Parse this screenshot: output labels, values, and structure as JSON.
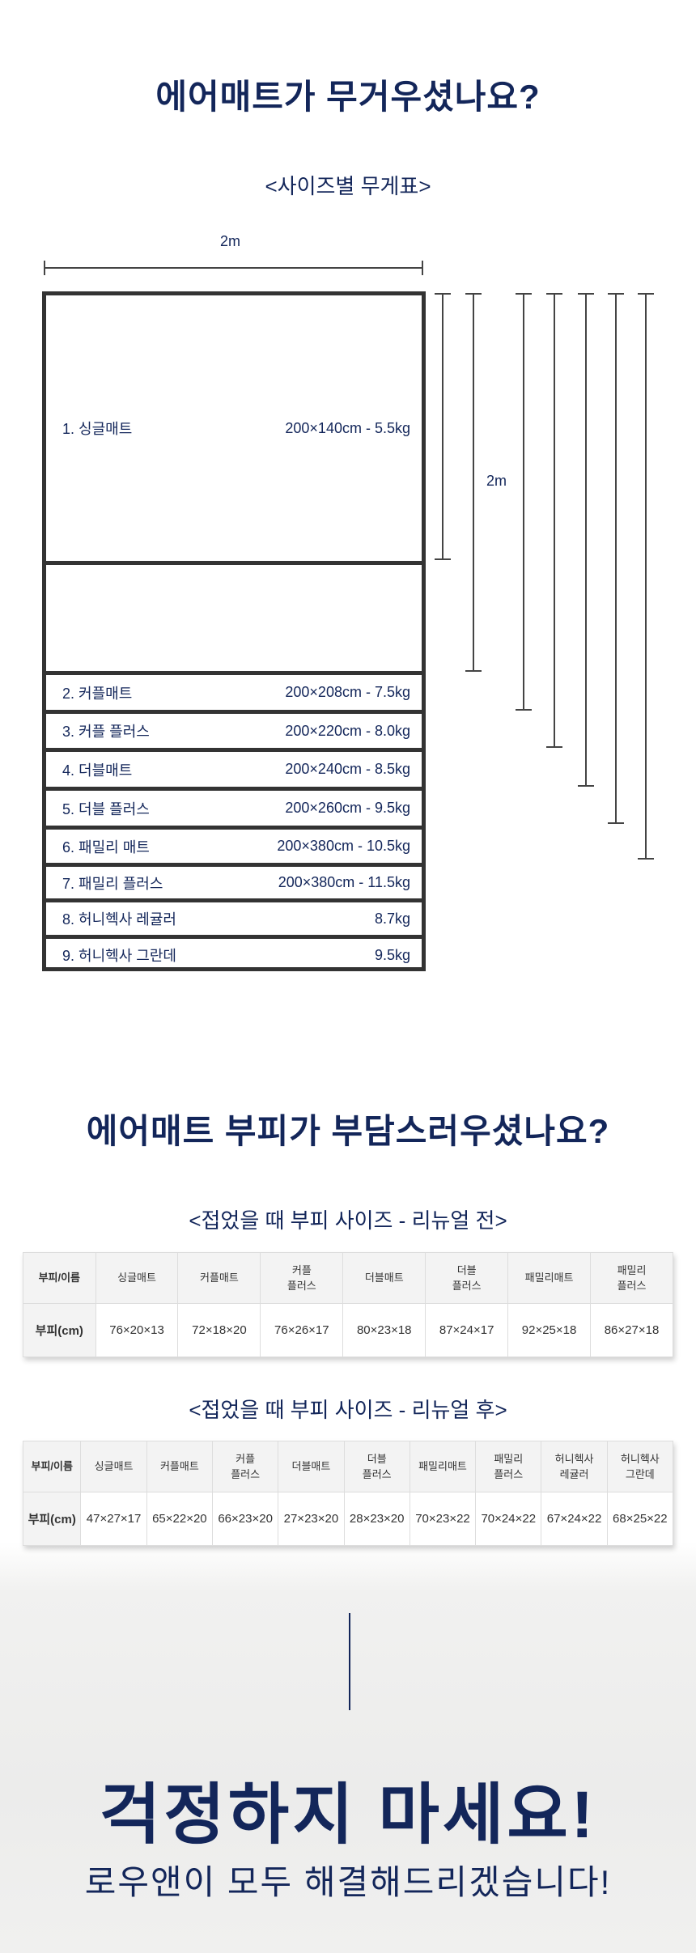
{
  "section1": {
    "title": "에어매트가 무거우셨나요?",
    "subtitle": "<사이즈별 무게표>",
    "width_label": "2m",
    "height_label": "2m",
    "mats": [
      {
        "name": "1. 싱글매트",
        "spec": "200×140cm - 5.5kg"
      },
      {
        "name": "2. 커플매트",
        "spec": "200×208cm - 7.5kg"
      },
      {
        "name": "3. 커플 플러스",
        "spec": "200×220cm - 8.0kg"
      },
      {
        "name": "4. 더블매트",
        "spec": "200×240cm - 8.5kg"
      },
      {
        "name": "5. 더블 플러스",
        "spec": "200×260cm - 9.5kg"
      },
      {
        "name": "6. 패밀리 매트",
        "spec": "200×380cm - 10.5kg"
      },
      {
        "name": "7. 패밀리 플러스",
        "spec": "200×380cm - 11.5kg"
      },
      {
        "name": "8. 허니헥사 레귤러",
        "spec": "8.7kg"
      },
      {
        "name": "9. 허니헥사 그란데",
        "spec": "9.5kg"
      }
    ]
  },
  "section2": {
    "title": "에어매트 부피가 부담스러우셨나요?",
    "before": {
      "subtitle": "<접었을 때 부피 사이즈 - 리뉴얼 전>",
      "header": [
        "부피/이름",
        "싱글매트",
        "커플매트",
        "커플\n플러스",
        "더블매트",
        "더블\n플러스",
        "패밀리매트",
        "패밀리\n플러스"
      ],
      "row": [
        "부피(cm)",
        "76×20×13",
        "72×18×20",
        "76×26×17",
        "80×23×18",
        "87×24×17",
        "92×25×18",
        "86×27×18"
      ]
    },
    "after": {
      "subtitle": "<접었을 때 부피 사이즈 - 리뉴얼 후>",
      "header": [
        "부피/이름",
        "싱글매트",
        "커플매트",
        "커플\n플러스",
        "더블매트",
        "더블\n플러스",
        "패밀리매트",
        "패밀리\n플러스",
        "허니헥사\n레귤러",
        "허니헥사\n그란데"
      ],
      "row": [
        "부피(cm)",
        "47×27×17",
        "65×22×20",
        "66×23×20",
        "27×23×20",
        "28×23×20",
        "70×23×22",
        "70×24×22",
        "67×24×22",
        "68×25×22"
      ]
    }
  },
  "section3": {
    "headline": "걱정하지 마세요!",
    "subline": "로우앤이 모두 해결해드리겠습니다!"
  },
  "colors": {
    "navy": "#13265a",
    "border": "#333333"
  }
}
